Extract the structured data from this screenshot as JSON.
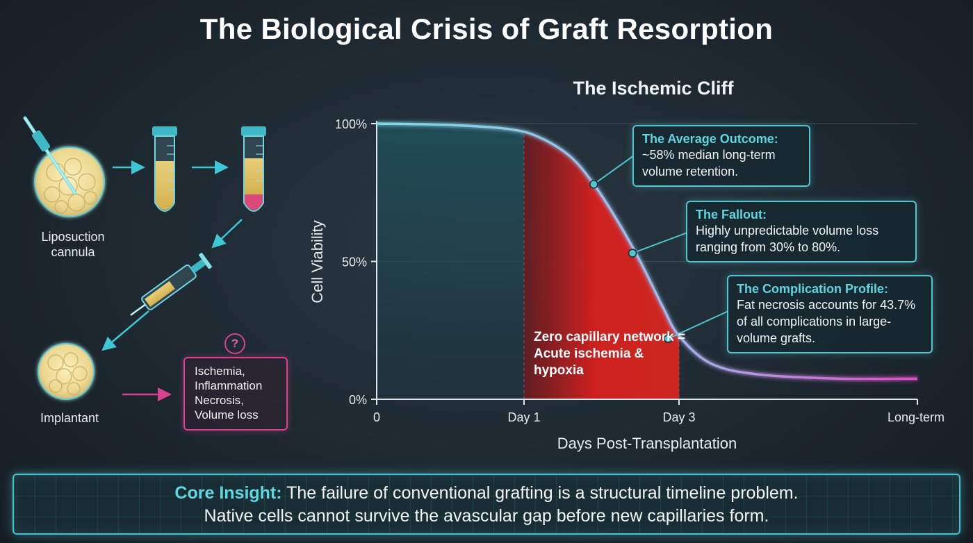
{
  "title": "The Biological Crisis of Graft Resorption",
  "process": {
    "harvest_label": "Liposuction\ncannula",
    "implant_label": "Implantant",
    "outcomes": [
      "Ischemia,",
      "Inflammation",
      "Necrosis,",
      "Volume loss"
    ],
    "question_mark": "?"
  },
  "chart_data": {
    "type": "line",
    "title": "The Ischemic Cliff",
    "xlabel": "Days Post-Transplantation",
    "ylabel": "Cell Viability",
    "x_tick_labels": [
      "0",
      "Day 1",
      "Day 3",
      "Long-term"
    ],
    "y_tick_labels": [
      "100%",
      "50%",
      "0%"
    ],
    "y_ticks": [
      100,
      50,
      0
    ],
    "ylim": [
      0,
      100
    ],
    "xlim": [
      0,
      3.5
    ],
    "x_tick_values": [
      0,
      1,
      2,
      3.5
    ],
    "series": [
      {
        "name": "",
        "x": [
          0,
          0.5,
          0.9,
          1.1,
          1.3,
          1.45,
          1.6,
          1.75,
          1.9,
          2.0,
          2.2,
          2.5,
          3.0,
          3.5
        ],
        "y": [
          100,
          99.5,
          98,
          95,
          88,
          78,
          65,
          50,
          33,
          23,
          13,
          9,
          7.5,
          7.5
        ]
      }
    ],
    "shaded_region": {
      "x_start": 1,
      "x_end": 2,
      "label": "Zero capillary network = Acute ischemia & hypoxia"
    },
    "annotations": [
      {
        "x": 1.45,
        "y": 78,
        "title": "The Average Outcome:",
        "text": "~58% median long-term volume retention."
      },
      {
        "x": 1.7,
        "y": 53,
        "title": "The Fallout:",
        "text": "Highly unpredictable volume loss ranging from 30% to 80%."
      },
      {
        "x": 1.93,
        "y": 22,
        "title": "The Complication Profile:",
        "text": "Fat necrosis accounts for 43.7% of all complications in large-volume grafts."
      }
    ],
    "grid": true,
    "colors": {
      "curve_start": "#7fd8e6",
      "curve_end": "#e24bc6",
      "ischemic_zone": "#d6201f",
      "pre_zone": "#1f5560",
      "annotation": "#4fc6d0"
    }
  },
  "insight": {
    "lead": "Core Insight:",
    "line1": "The failure of conventional grafting is a structural timeline problem.",
    "line2": "Native cells cannot survive the avascular gap before new capillaries form."
  }
}
